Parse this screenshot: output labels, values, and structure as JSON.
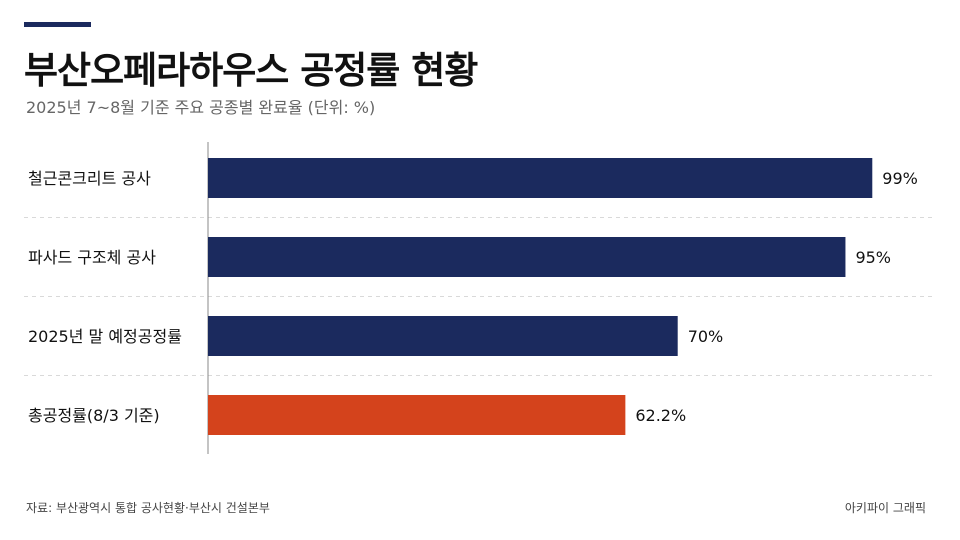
{
  "header": {
    "title": "부산오페라하우스 공정률 현황",
    "subtitle": "2025년 7~8월 기준 주요 공종별 완료율 (단위: %)"
  },
  "footer": {
    "source": "자료: 부산광역시 통합 공사현황·부산시 건설본부",
    "credit": "아키파이 그래픽"
  },
  "colors": {
    "primary_bar": "#1b2a5e",
    "highlight_bar": "#d4431c",
    "accent": "#1b2a5e"
  },
  "chart_data": {
    "type": "bar",
    "orientation": "horizontal",
    "categories": [
      "철근콘크리트 공사",
      "파사드 구조체 공사",
      "2025년 말 예정공정률",
      "총공정률(8/3 기준)"
    ],
    "values": [
      99,
      95,
      70,
      62.2
    ],
    "value_labels": [
      "99%",
      "95%",
      "70%",
      "62.2%"
    ],
    "highlight_index": 3,
    "xlim": [
      0,
      100
    ],
    "grid": false,
    "legend": "none"
  }
}
